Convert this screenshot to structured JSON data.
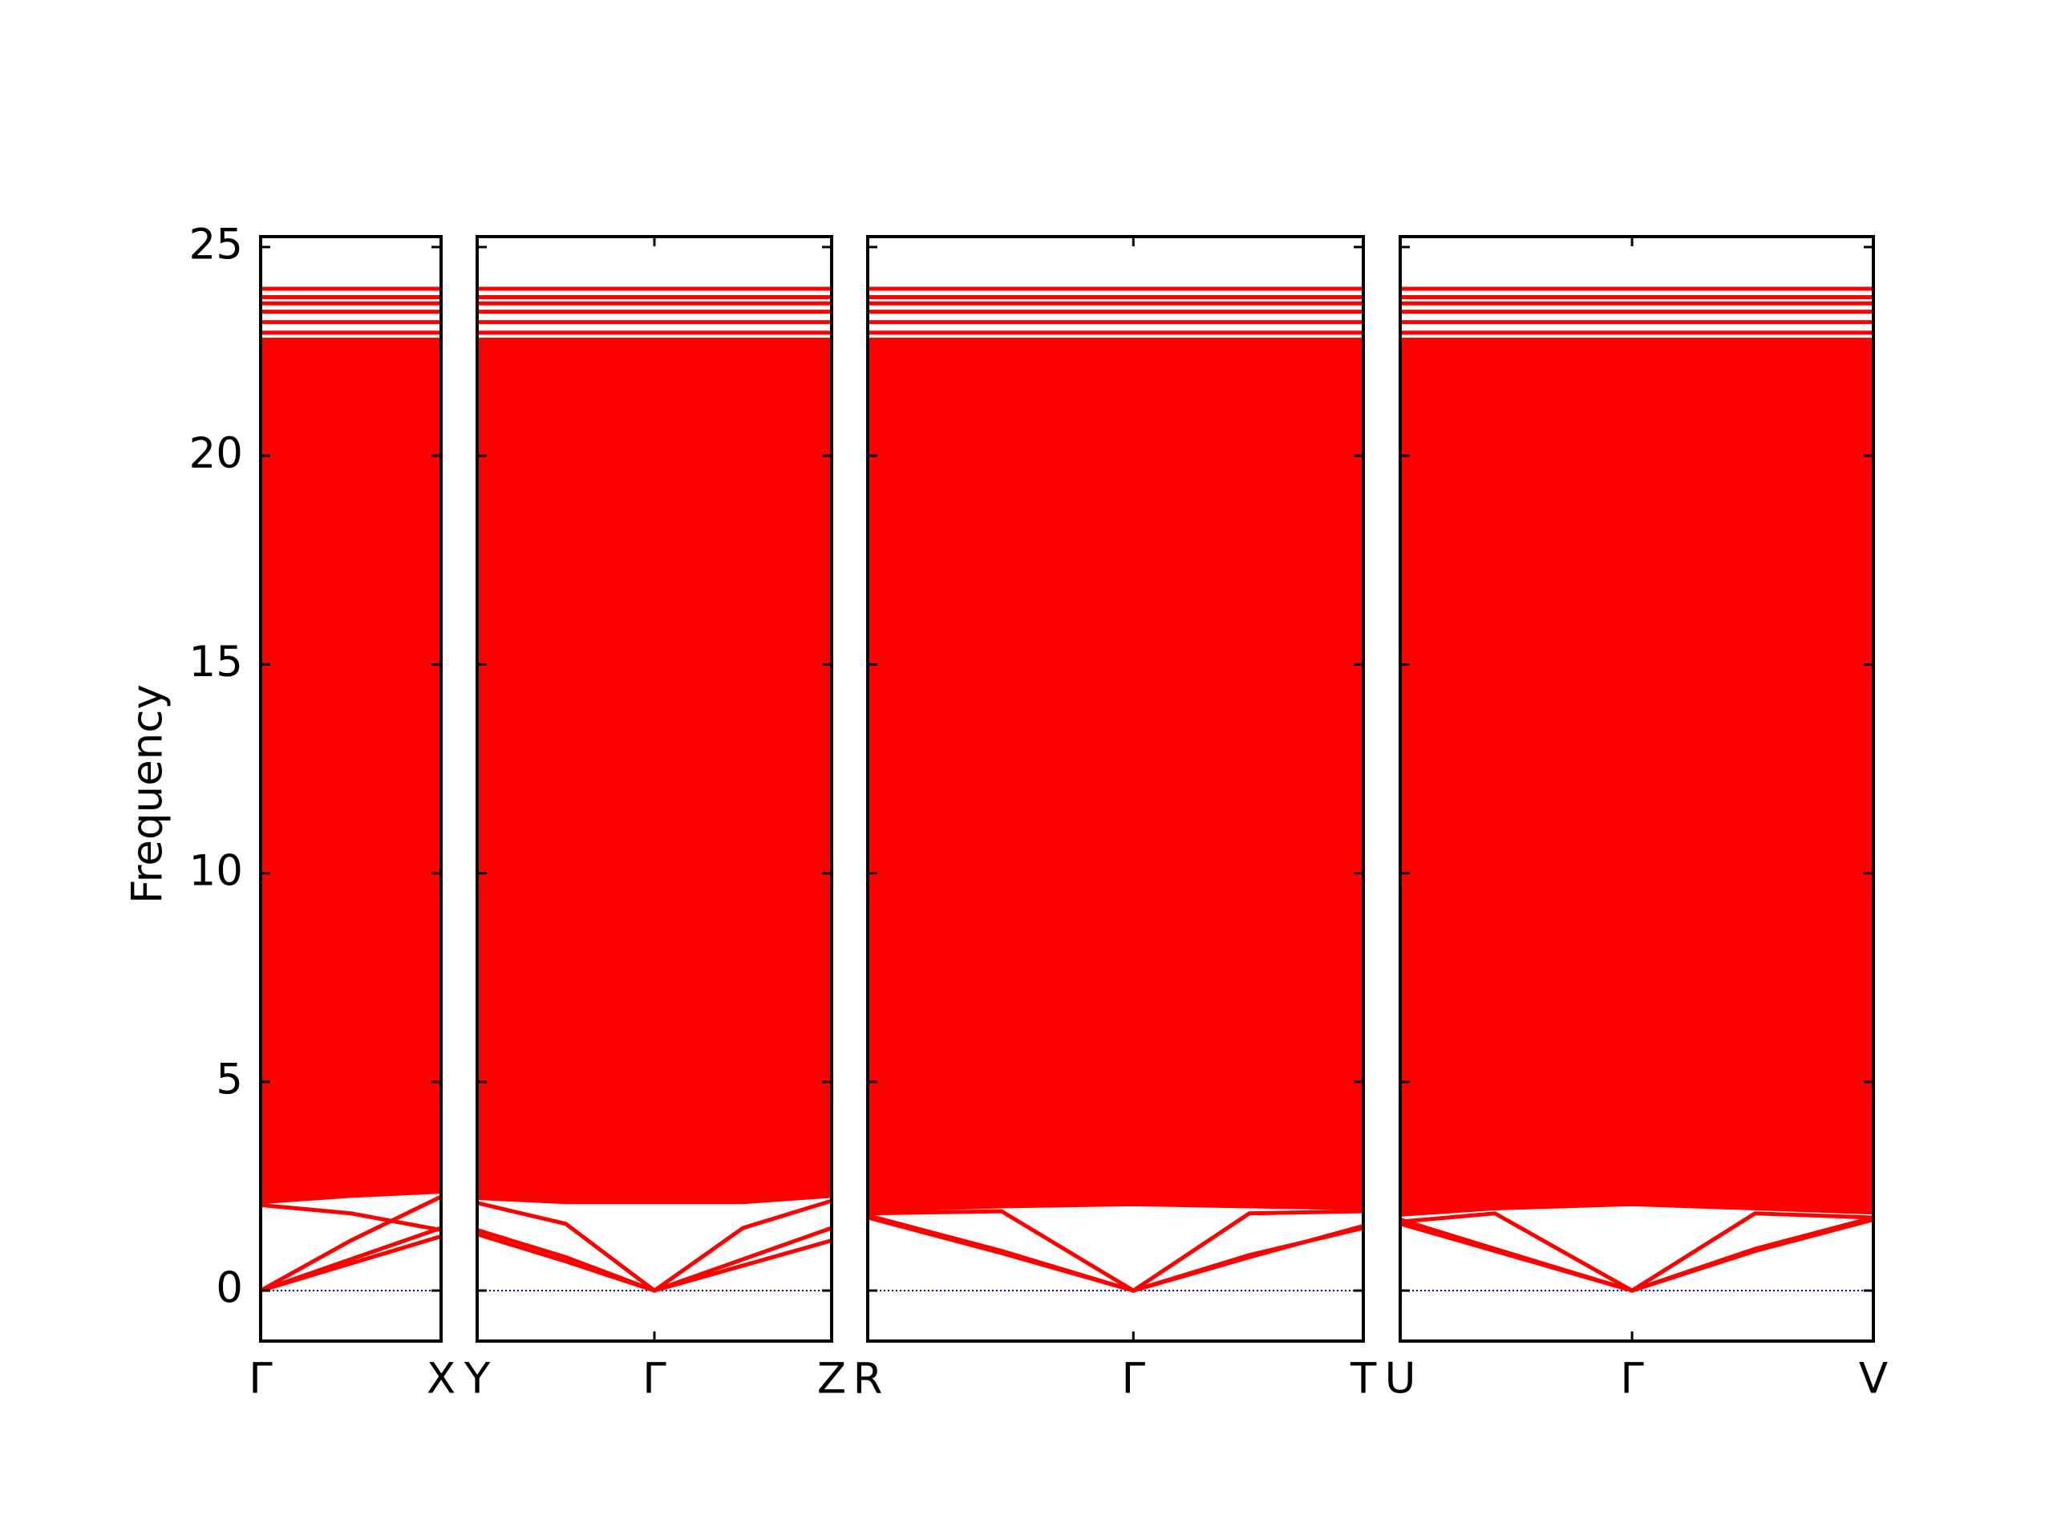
{
  "chart_data": {
    "type": "line",
    "y_label": "Frequency",
    "ylim": [
      -1.21,
      25.25
    ],
    "yticks": [
      0,
      5,
      10,
      15,
      20,
      25
    ],
    "color": "#ff0000",
    "hline": {
      "value": 0,
      "color": "#0000cc"
    },
    "flat_bands": [
      22.95,
      23.2,
      23.45,
      23.65,
      23.8,
      24.0
    ],
    "panels": [
      {
        "xlim": [
          0,
          1
        ],
        "xticks": [
          {
            "value": 0,
            "label": "Γ"
          },
          {
            "value": 1,
            "label": "X"
          }
        ],
        "x": [
          0,
          0.5,
          1
        ],
        "band_min": [
          2.1,
          2.25,
          2.35
        ],
        "band_max": [
          22.8,
          22.8,
          22.8
        ],
        "series": [
          {
            "values": [
              0,
              0.65,
              1.3
            ]
          },
          {
            "values": [
              0,
              0.75,
              1.5
            ]
          },
          {
            "values": [
              0,
              1.2,
              2.25
            ]
          },
          {
            "values": [
              2.05,
              1.85,
              1.45
            ]
          }
        ]
      },
      {
        "xlim": [
          0,
          1
        ],
        "xticks": [
          {
            "value": 0,
            "label": "Y"
          },
          {
            "value": 0.5,
            "label": "Γ"
          },
          {
            "value": 1,
            "label": "Z"
          }
        ],
        "x": [
          0,
          0.25,
          0.5,
          0.75,
          1
        ],
        "band_min": [
          2.2,
          2.1,
          2.1,
          2.1,
          2.25
        ],
        "band_max": [
          22.8,
          22.8,
          22.8,
          22.8,
          22.8
        ],
        "series": [
          {
            "values": [
              1.35,
              0.7,
              0,
              0.6,
              1.2
            ]
          },
          {
            "values": [
              1.45,
              0.8,
              0,
              0.75,
              1.5
            ]
          },
          {
            "values": [
              2.1,
              1.6,
              0,
              1.5,
              2.15
            ]
          }
        ]
      },
      {
        "xlim": [
          0,
          1
        ],
        "xticks": [
          {
            "value": 0,
            "label": "R"
          },
          {
            "value": 0.536,
            "label": "Γ"
          },
          {
            "value": 1,
            "label": "T"
          }
        ],
        "x": [
          0,
          0.27,
          0.536,
          0.77,
          1
        ],
        "band_min": [
          1.9,
          2.0,
          2.05,
          2.0,
          1.95
        ],
        "band_max": [
          22.8,
          22.8,
          22.8,
          22.8,
          22.8
        ],
        "series": [
          {
            "values": [
              1.75,
              0.9,
              0,
              0.8,
              1.55
            ]
          },
          {
            "values": [
              1.8,
              0.95,
              0,
              0.85,
              1.5
            ]
          },
          {
            "values": [
              1.85,
              1.9,
              0,
              1.85,
              1.9
            ]
          }
        ]
      },
      {
        "xlim": [
          0,
          1
        ],
        "xticks": [
          {
            "value": 0,
            "label": "U"
          },
          {
            "value": 0.49,
            "label": "Γ"
          },
          {
            "value": 1,
            "label": "V"
          }
        ],
        "x": [
          0,
          0.2,
          0.49,
          0.75,
          1
        ],
        "band_min": [
          1.8,
          1.95,
          2.05,
          1.95,
          1.85
        ],
        "band_max": [
          22.8,
          22.8,
          22.8,
          22.8,
          22.8
        ],
        "series": [
          {
            "values": [
              1.6,
              0.95,
              0,
              0.95,
              1.7
            ]
          },
          {
            "values": [
              1.65,
              1.85,
              0,
              1.85,
              1.75
            ]
          },
          {
            "values": [
              1.7,
              1.0,
              0,
              1.0,
              1.75
            ]
          }
        ]
      }
    ]
  }
}
